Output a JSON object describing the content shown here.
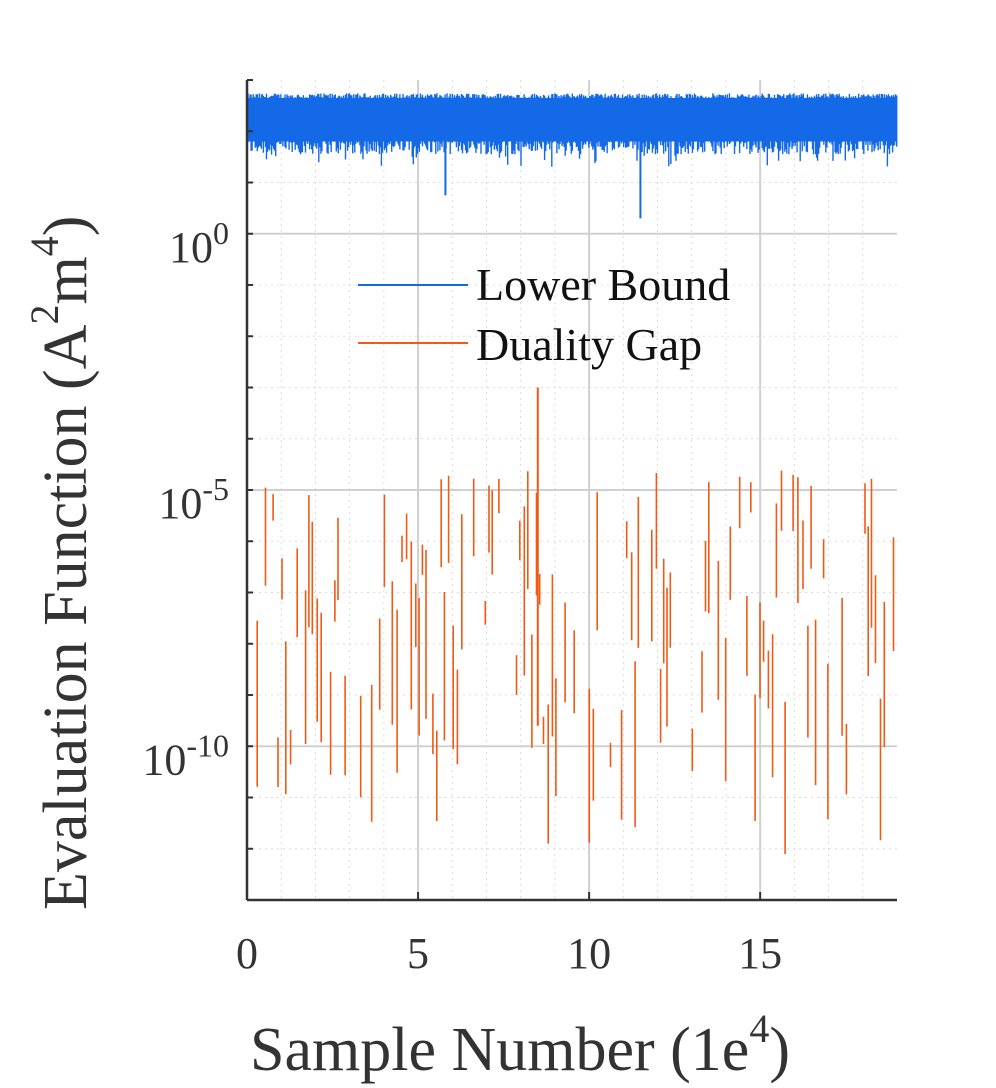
{
  "chart_data": {
    "type": "line",
    "xlabel": "Sample Number (1e",
    "xlabel_superscript": "4",
    "xlabel_suffix": ")",
    "ylabel": "Evaluation Function (A",
    "ylabel_sup1": "2",
    "ylabel_mid": "m",
    "ylabel_sup2": "4",
    "ylabel_suffix": ")",
    "x_scale_note": "x values in units of 1e4 samples",
    "xlim": [
      0,
      19
    ],
    "ylim_log10": [
      -13,
      3
    ],
    "y_scale": "log",
    "grid": true,
    "minor_grid": true,
    "x_ticks": [
      0,
      5,
      10,
      15
    ],
    "x_tick_labels": [
      "0",
      "5",
      "10",
      "15"
    ],
    "y_ticks_log10": [
      0,
      -5,
      -10
    ],
    "y_tick_labels": [
      {
        "base": "10",
        "exp": "0"
      },
      {
        "base": "10",
        "exp": "-5"
      },
      {
        "base": "10",
        "exp": "-10"
      }
    ],
    "legend_position": "upper-center",
    "series": [
      {
        "name": "Lower Bound",
        "color": "#1469e6",
        "description": "dense band of values around 1e1.5–1e2.7 across all samples",
        "band_log10": [
          1.45,
          2.7
        ],
        "dips_log10": [
          {
            "x": 5.8,
            "y": 0.75
          },
          {
            "x": 11.5,
            "y": 0.3
          }
        ]
      },
      {
        "name": "Duality Gap",
        "color": "#f05a14",
        "description": "sparse spikes between 1e-12 and 1e-3 across samples",
        "range_log10": [
          -12.3,
          -3.0
        ],
        "peak": {
          "x": 8.5,
          "y_log10": -3.0
        }
      }
    ]
  }
}
